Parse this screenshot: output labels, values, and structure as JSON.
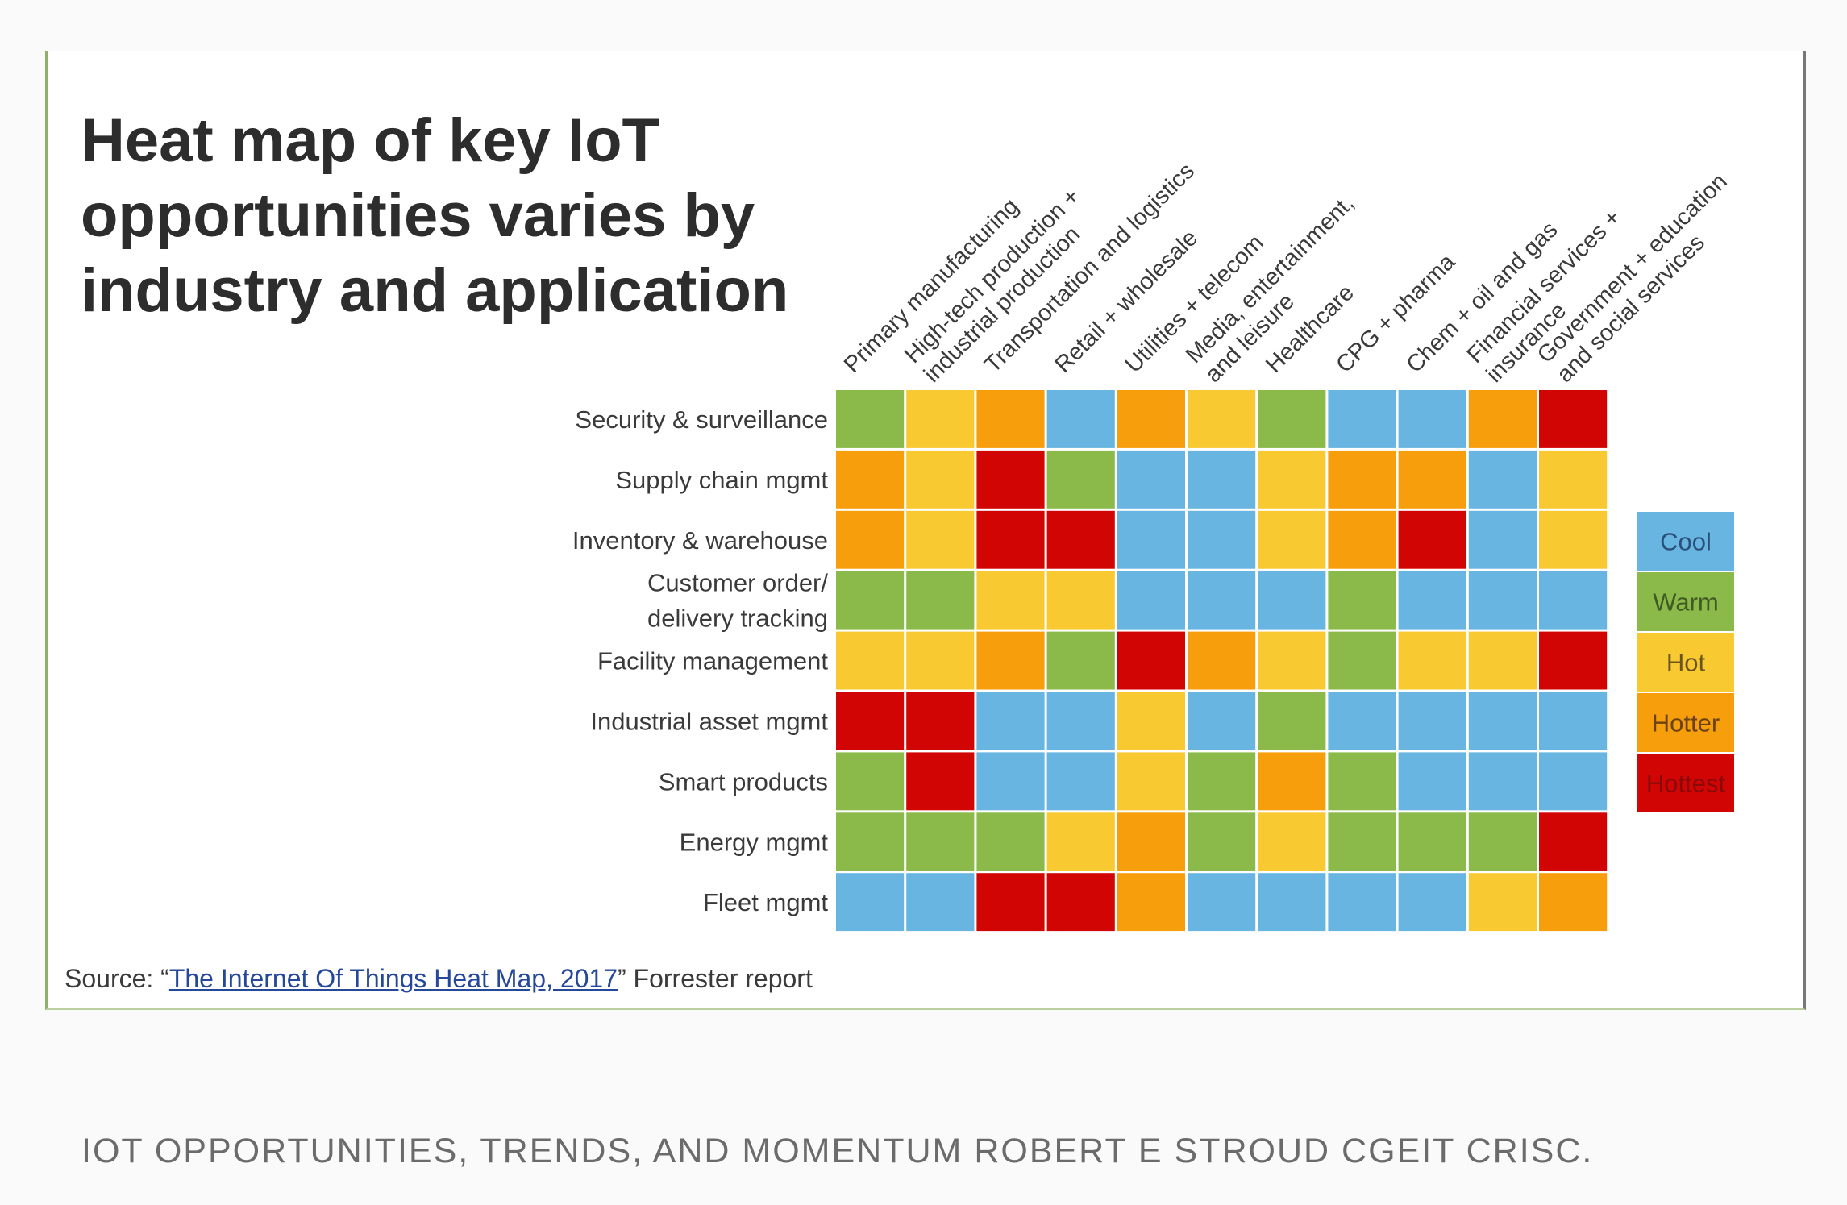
{
  "chart_data": {
    "type": "heatmap",
    "title": [
      "Heat map of key IoT",
      "opportunities varies by",
      "industry and application"
    ],
    "columns": [
      [
        "Primary manufacturing"
      ],
      [
        "High-tech production +",
        "industrial production"
      ],
      [
        "Transportation and logistics"
      ],
      [
        "Retail + wholesale"
      ],
      [
        "Utilities + telecom"
      ],
      [
        "Media, entertainment,",
        "and leisure"
      ],
      [
        "Healthcare"
      ],
      [
        "CPG + pharma"
      ],
      [
        "Chem + oil and gas"
      ],
      [
        "Financial services +",
        "insurance"
      ],
      [
        "Government + education",
        "and social services"
      ]
    ],
    "rows": [
      [
        "Security & surveillance"
      ],
      [
        "Supply chain mgmt"
      ],
      [
        "Inventory & warehouse"
      ],
      [
        "Customer order/",
        "delivery tracking"
      ],
      [
        "Facility management"
      ],
      [
        "Industrial asset mgmt"
      ],
      [
        "Smart products"
      ],
      [
        "Energy mgmt"
      ],
      [
        "Fleet mgmt"
      ]
    ],
    "scale": [
      "Cool",
      "Warm",
      "Hot",
      "Hotter",
      "Hottest"
    ],
    "scale_colors": {
      "Cool": "#67b5e0",
      "Warm": "#8bba4b",
      "Hot": "#f9c932",
      "Hotter": "#f79e0c",
      "Hottest": "#d20505"
    },
    "legend_text_colors": {
      "Cool": "#2a4f7a",
      "Warm": "#3f5a23",
      "Hot": "#6a5420",
      "Hotter": "#6a4214",
      "Hottest": "#8a0a0a"
    },
    "legend_position": "right",
    "values": [
      [
        "Warm",
        "Hot",
        "Hotter",
        "Cool",
        "Hotter",
        "Hot",
        "Warm",
        "Cool",
        "Cool",
        "Hotter",
        "Hottest"
      ],
      [
        "Hotter",
        "Hot",
        "Hottest",
        "Warm",
        "Cool",
        "Cool",
        "Hot",
        "Hotter",
        "Hotter",
        "Cool",
        "Hot"
      ],
      [
        "Hotter",
        "Hot",
        "Hottest",
        "Hottest",
        "Cool",
        "Cool",
        "Hot",
        "Hotter",
        "Hottest",
        "Cool",
        "Hot"
      ],
      [
        "Warm",
        "Warm",
        "Hot",
        "Hot",
        "Cool",
        "Cool",
        "Cool",
        "Warm",
        "Cool",
        "Cool",
        "Cool"
      ],
      [
        "Hot",
        "Hot",
        "Hotter",
        "Warm",
        "Hottest",
        "Hotter",
        "Hot",
        "Warm",
        "Hot",
        "Hot",
        "Hottest"
      ],
      [
        "Hottest",
        "Hottest",
        "Cool",
        "Cool",
        "Hot",
        "Cool",
        "Warm",
        "Cool",
        "Cool",
        "Cool",
        "Cool"
      ],
      [
        "Warm",
        "Hottest",
        "Cool",
        "Cool",
        "Hot",
        "Warm",
        "Hotter",
        "Warm",
        "Cool",
        "Cool",
        "Cool"
      ],
      [
        "Warm",
        "Warm",
        "Warm",
        "Hot",
        "Hotter",
        "Warm",
        "Hot",
        "Warm",
        "Warm",
        "Warm",
        "Hottest"
      ],
      [
        "Cool",
        "Cool",
        "Hottest",
        "Hottest",
        "Hotter",
        "Cool",
        "Cool",
        "Cool",
        "Cool",
        "Hot",
        "Hotter"
      ]
    ]
  },
  "source": {
    "prefix": "Source: “",
    "link_text": "The Internet Of Things Heat Map, 2017",
    "suffix": "” Forrester report"
  },
  "caption": "IOT OPPORTUNITIES, TRENDS, AND MOMENTUM ROBERT E STROUD CGEIT CRISC."
}
